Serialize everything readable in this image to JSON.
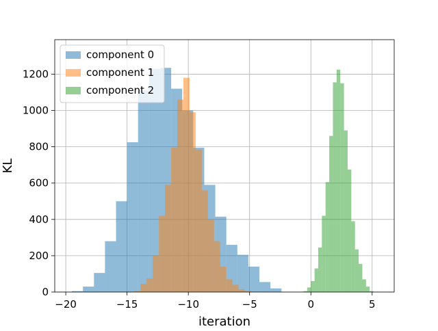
{
  "chart_data": {
    "type": "bar",
    "title": "",
    "xlabel": "iteration",
    "ylabel": "KL",
    "xlim": [
      -20.9,
      6.8
    ],
    "ylim": [
      0,
      1390
    ],
    "xticks": [
      -20,
      -15,
      -10,
      -5,
      0,
      5
    ],
    "xtick_labels": [
      "−20",
      "−15",
      "−10",
      "−5",
      "0",
      "5"
    ],
    "yticks": [
      0,
      200,
      400,
      600,
      800,
      1000,
      1200
    ],
    "grid": true,
    "legend_position": "top-left",
    "series": [
      {
        "name": "component 0",
        "color": "#1f77b4",
        "opacity": 0.5,
        "bins": [
          [
            -19.5,
            -18.6,
            5
          ],
          [
            -18.6,
            -17.7,
            30
          ],
          [
            -17.7,
            -16.8,
            105
          ],
          [
            -16.8,
            -15.9,
            280
          ],
          [
            -15.9,
            -15.0,
            500
          ],
          [
            -15.0,
            -14.1,
            825
          ],
          [
            -14.1,
            -13.2,
            1110
          ],
          [
            -13.2,
            -12.3,
            1230
          ],
          [
            -12.3,
            -11.4,
            1235
          ],
          [
            -11.4,
            -10.5,
            1120
          ],
          [
            -10.5,
            -9.6,
            1000
          ],
          [
            -9.6,
            -8.7,
            795
          ],
          [
            -8.7,
            -7.8,
            590
          ],
          [
            -7.8,
            -6.9,
            415
          ],
          [
            -6.9,
            -6.0,
            260
          ],
          [
            -6.0,
            -5.1,
            205
          ],
          [
            -5.1,
            -4.2,
            140
          ],
          [
            -4.2,
            -3.3,
            55
          ],
          [
            -3.3,
            -2.4,
            20
          ]
        ]
      },
      {
        "name": "component 1",
        "color": "#ff7f0e",
        "opacity": 0.5,
        "bins": [
          [
            -14.4,
            -13.9,
            5
          ],
          [
            -13.9,
            -13.4,
            45
          ],
          [
            -13.4,
            -12.9,
            75
          ],
          [
            -12.9,
            -12.4,
            200
          ],
          [
            -12.4,
            -11.9,
            420
          ],
          [
            -11.9,
            -11.4,
            590
          ],
          [
            -11.4,
            -10.9,
            795
          ],
          [
            -10.9,
            -10.4,
            1060
          ],
          [
            -10.4,
            -9.9,
            1180
          ],
          [
            -9.9,
            -9.4,
            990
          ],
          [
            -9.4,
            -8.9,
            785
          ],
          [
            -8.9,
            -8.4,
            560
          ],
          [
            -8.4,
            -7.9,
            400
          ],
          [
            -7.9,
            -7.4,
            280
          ],
          [
            -7.4,
            -6.9,
            140
          ],
          [
            -6.9,
            -6.4,
            70
          ],
          [
            -6.4,
            -5.9,
            40
          ],
          [
            -5.9,
            -5.4,
            15
          ],
          [
            -5.4,
            -4.9,
            5
          ]
        ]
      },
      {
        "name": "component 2",
        "color": "#2ca02c",
        "opacity": 0.5,
        "bins": [
          [
            -0.6,
            -0.3,
            5
          ],
          [
            -0.3,
            0.0,
            25
          ],
          [
            0.0,
            0.3,
            60
          ],
          [
            0.3,
            0.6,
            130
          ],
          [
            0.6,
            0.9,
            245
          ],
          [
            0.9,
            1.2,
            420
          ],
          [
            1.2,
            1.5,
            605
          ],
          [
            1.5,
            1.8,
            860
          ],
          [
            1.8,
            2.1,
            1155
          ],
          [
            2.1,
            2.4,
            1225
          ],
          [
            2.4,
            2.7,
            1150
          ],
          [
            2.7,
            3.0,
            890
          ],
          [
            3.0,
            3.3,
            675
          ],
          [
            3.3,
            3.6,
            390
          ],
          [
            3.6,
            3.9,
            235
          ],
          [
            3.9,
            4.2,
            155
          ],
          [
            4.2,
            4.5,
            70
          ],
          [
            4.5,
            4.8,
            30
          ],
          [
            4.8,
            5.1,
            5
          ]
        ]
      }
    ]
  }
}
